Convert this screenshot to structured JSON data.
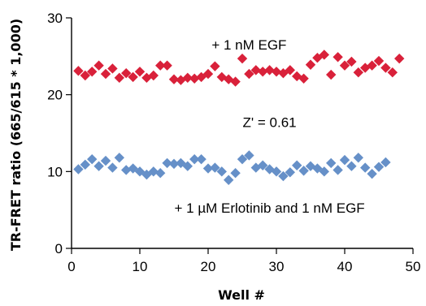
{
  "chart_data": {
    "type": "scatter",
    "title": "",
    "xlabel": "Well #",
    "ylabel": "TR-FRET ratio (665/615 * 1,000)",
    "xlim": [
      0,
      50
    ],
    "ylim": [
      0,
      30
    ],
    "xticks": [
      0,
      10,
      20,
      30,
      40,
      50
    ],
    "yticks": [
      0,
      10,
      20,
      30
    ],
    "x_tick_labels": [
      "0",
      "10",
      "20",
      "30",
      "40",
      "50"
    ],
    "y_tick_labels": [
      "0",
      "10",
      "20",
      "30"
    ],
    "grid": false,
    "marker": "diamond",
    "annotations": [
      {
        "text": "+ 1 nM  EGF",
        "x": 26,
        "y": 26.5
      },
      {
        "text": "Z' = 0.61",
        "x": 29,
        "y": 16.4
      },
      {
        "text": "+ 1 µM Erlotinib and 1 nM EGF",
        "x": 29,
        "y": 5.3
      }
    ],
    "series": [
      {
        "color": "#d9213a",
        "x": [
          1,
          2,
          3,
          4,
          5,
          6,
          7,
          8,
          9,
          10,
          11,
          12,
          13,
          14,
          15,
          16,
          17,
          18,
          19,
          20,
          21,
          22,
          23,
          24,
          25,
          26,
          27,
          28,
          29,
          30,
          31,
          32,
          33,
          34,
          35,
          36,
          37,
          38,
          39,
          40,
          41,
          42,
          43,
          44,
          45,
          46,
          47,
          48
        ],
        "y": [
          23.1,
          22.5,
          23.0,
          23.8,
          22.7,
          23.4,
          22.2,
          22.8,
          22.3,
          23.0,
          22.2,
          22.5,
          23.8,
          23.8,
          22.0,
          21.9,
          22.2,
          22.1,
          22.3,
          22.7,
          23.7,
          22.3,
          22.0,
          21.7,
          24.7,
          22.7,
          23.2,
          23.0,
          23.2,
          23.0,
          22.8,
          23.2,
          22.4,
          22.1,
          23.9,
          24.8,
          25.2,
          22.6,
          24.9,
          23.8,
          24.3,
          22.9,
          23.5,
          23.8,
          24.4,
          23.5,
          22.9,
          24.7
        ]
      },
      {
        "color": "#6690c8",
        "x": [
          1,
          2,
          3,
          4,
          5,
          6,
          7,
          8,
          9,
          10,
          11,
          12,
          13,
          14,
          15,
          16,
          17,
          18,
          19,
          20,
          21,
          22,
          23,
          24,
          25,
          26,
          27,
          28,
          29,
          30,
          31,
          32,
          33,
          34,
          35,
          36,
          37,
          38,
          39,
          40,
          41,
          42,
          43,
          44,
          45,
          46
        ],
        "y": [
          10.3,
          10.9,
          11.6,
          10.7,
          11.4,
          10.5,
          11.8,
          10.2,
          10.4,
          10.0,
          9.6,
          10.0,
          9.8,
          11.1,
          11.0,
          11.1,
          10.7,
          11.6,
          11.6,
          10.4,
          10.5,
          10.0,
          8.9,
          9.8,
          11.6,
          12.1,
          10.5,
          10.8,
          10.3,
          10.0,
          9.4,
          9.9,
          10.8,
          10.1,
          10.7,
          10.4,
          10.0,
          11.1,
          10.2,
          11.5,
          10.7,
          11.8,
          10.5,
          9.7,
          10.6,
          11.2
        ]
      }
    ]
  }
}
